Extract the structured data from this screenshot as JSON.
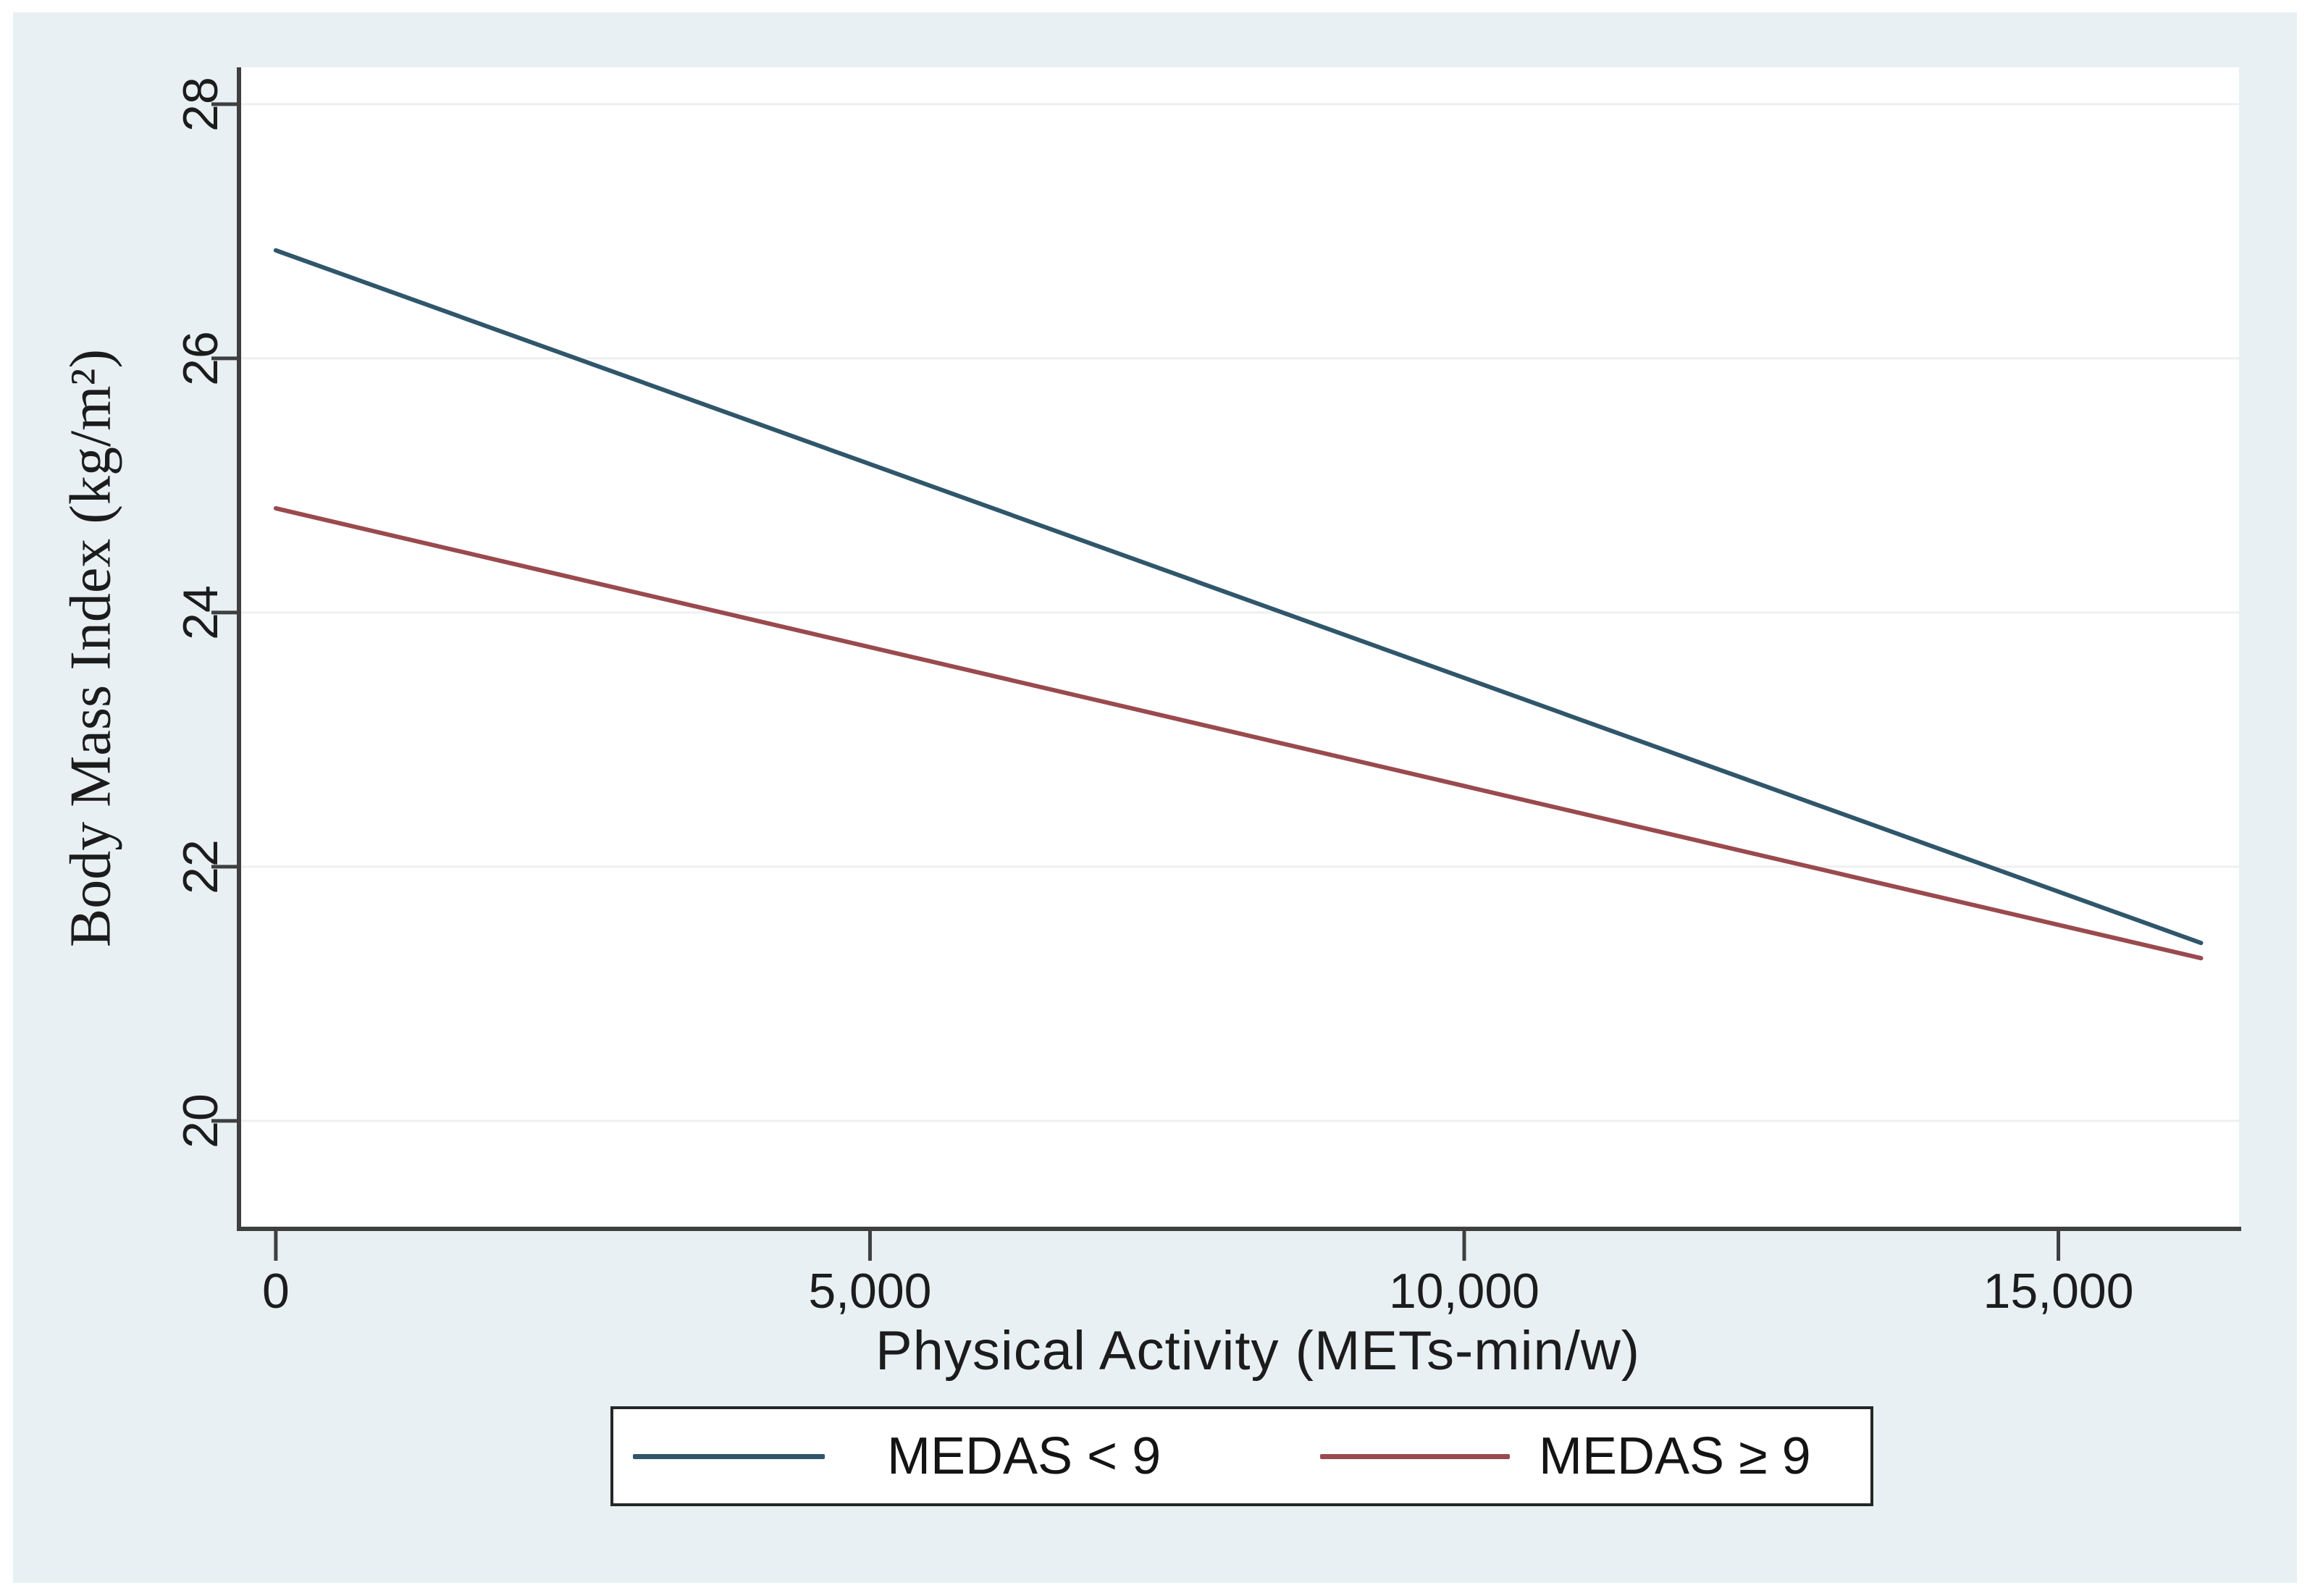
{
  "figure": {
    "outer_background": "#ffffff",
    "inner_background": "#e8f0f3",
    "plot_background": "#ffffff"
  },
  "chart_data": {
    "type": "line",
    "title": "",
    "xlabel": "Physical Activity (METs-min/w)",
    "ylabel": "Body Mass Index (kg/m²)",
    "xlim": [
      -310,
      16520
    ],
    "ylim": [
      19.15,
      28.29
    ],
    "grid": "horizontal",
    "grid_color": "#edeff0",
    "axis_color": "#3f3f3f",
    "legend_position": "bottom",
    "xticks": [
      {
        "value": 0,
        "label": "0"
      },
      {
        "value": 5000,
        "label": "5,000"
      },
      {
        "value": 10000,
        "label": "10,000"
      },
      {
        "value": 15000,
        "label": "15,000"
      }
    ],
    "yticks": [
      {
        "value": 20,
        "label": "20"
      },
      {
        "value": 22,
        "label": "22"
      },
      {
        "value": 24,
        "label": "24"
      },
      {
        "value": 26,
        "label": "26"
      },
      {
        "value": 28,
        "label": "28"
      }
    ],
    "series": [
      {
        "name": "MEDAS < 9",
        "color": "#30566b",
        "points": [
          [
            0,
            26.85
          ],
          [
            16200,
            21.4
          ]
        ]
      },
      {
        "name": "MEDAS ≥ 9",
        "color": "#9a4a4e",
        "points": [
          [
            0,
            24.82
          ],
          [
            16200,
            21.28
          ]
        ]
      }
    ]
  }
}
